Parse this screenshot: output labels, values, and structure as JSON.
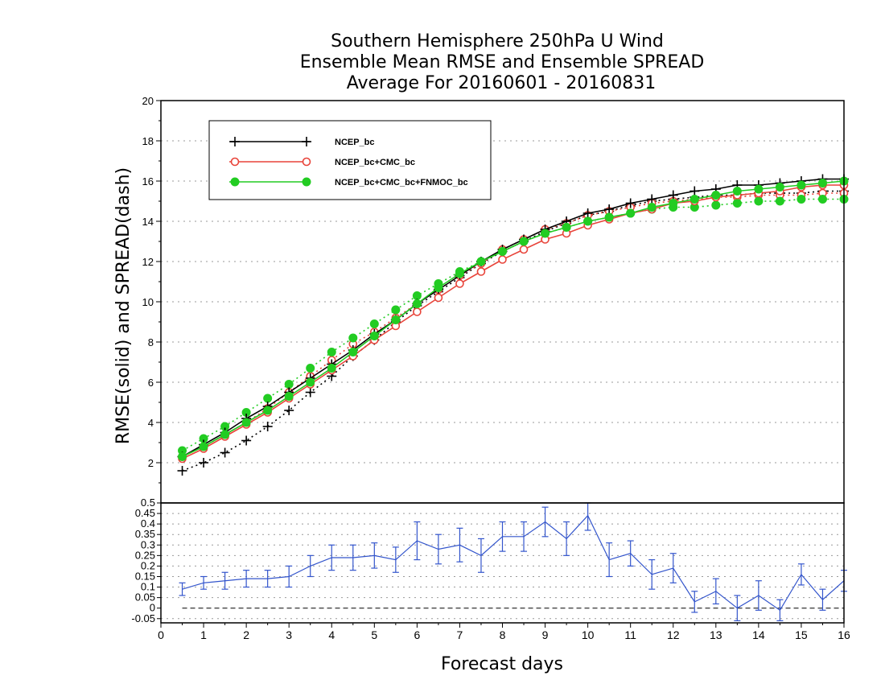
{
  "chart_data": [
    {
      "type": "line",
      "title_lines": [
        "Southern Hemisphere 250hPa U Wind",
        "Ensemble Mean RMSE and Ensemble SPREAD",
        "Average For 20160601 - 20160831"
      ],
      "ylabel": "RMSE(solid) and SPREAD(dash)",
      "xlabel": "Forecast days",
      "xlim": [
        0,
        16
      ],
      "ylim": [
        0,
        20
      ],
      "yticks": [
        2,
        4,
        6,
        8,
        10,
        12,
        14,
        16,
        18,
        20
      ],
      "xticks": [
        0,
        1,
        2,
        3,
        4,
        5,
        6,
        7,
        8,
        9,
        10,
        11,
        12,
        13,
        14,
        15,
        16
      ],
      "grid": true,
      "legend_position": "top-left",
      "x": [
        0.5,
        1,
        1.5,
        2,
        2.5,
        3,
        3.5,
        4,
        4.5,
        5,
        5.5,
        6,
        6.5,
        7,
        7.5,
        8,
        8.5,
        9,
        9.5,
        10,
        10.5,
        11,
        11.5,
        12,
        12.5,
        13,
        13.5,
        14,
        14.5,
        15,
        15.5,
        16
      ],
      "series": [
        {
          "name": "NCEP_bc",
          "color": "#000000",
          "marker": "plus",
          "rmse": [
            2.3,
            2.9,
            3.5,
            4.2,
            4.8,
            5.5,
            6.2,
            6.9,
            7.6,
            8.4,
            9.1,
            9.9,
            10.6,
            11.3,
            12.0,
            12.6,
            13.1,
            13.6,
            14.0,
            14.4,
            14.6,
            14.9,
            15.1,
            15.3,
            15.5,
            15.6,
            15.8,
            15.8,
            15.9,
            16.0,
            16.1,
            16.1
          ],
          "spread": [
            1.6,
            2.0,
            2.5,
            3.1,
            3.8,
            4.6,
            5.5,
            6.3,
            7.3,
            8.1,
            9.0,
            9.8,
            10.5,
            11.2,
            11.9,
            12.5,
            13.0,
            13.5,
            13.9,
            14.3,
            14.5,
            14.8,
            15.0,
            15.1,
            15.2,
            15.3,
            15.3,
            15.4,
            15.4,
            15.4,
            15.5,
            15.5
          ]
        },
        {
          "name": "NCEP_bc+CMC_bc",
          "color": "#e8443a",
          "marker": "open-circle",
          "rmse": [
            2.2,
            2.7,
            3.3,
            3.9,
            4.5,
            5.2,
            5.9,
            6.6,
            7.3,
            8.1,
            8.8,
            9.5,
            10.2,
            10.9,
            11.5,
            12.1,
            12.6,
            13.1,
            13.4,
            13.8,
            14.1,
            14.4,
            14.6,
            14.9,
            15.0,
            15.2,
            15.3,
            15.4,
            15.5,
            15.7,
            15.8,
            15.8
          ],
          "spread": [
            2.3,
            2.8,
            3.4,
            4.0,
            4.7,
            5.5,
            6.3,
            7.1,
            7.9,
            8.5,
            9.2,
            9.9,
            10.6,
            11.3,
            11.9,
            12.6,
            13.1,
            13.6,
            13.9,
            14.3,
            14.5,
            14.7,
            14.9,
            15.0,
            15.1,
            15.2,
            15.2,
            15.3,
            15.3,
            15.3,
            15.4,
            15.4
          ]
        },
        {
          "name": "NCEP_bc+CMC_bc+FNMOC_bc",
          "color": "#22cc22",
          "marker": "filled-circle",
          "rmse": [
            2.3,
            2.8,
            3.4,
            4.0,
            4.6,
            5.3,
            6.0,
            6.7,
            7.5,
            8.3,
            9.1,
            9.9,
            10.7,
            11.4,
            12.0,
            12.5,
            13.0,
            13.4,
            13.7,
            14.0,
            14.2,
            14.4,
            14.7,
            14.9,
            15.1,
            15.3,
            15.5,
            15.6,
            15.7,
            15.8,
            15.9,
            16.0
          ],
          "spread": [
            2.6,
            3.2,
            3.8,
            4.5,
            5.2,
            5.9,
            6.7,
            7.5,
            8.2,
            8.9,
            9.6,
            10.3,
            10.9,
            11.5,
            12.0,
            12.5,
            13.0,
            13.4,
            13.7,
            14.0,
            14.2,
            14.4,
            14.6,
            14.7,
            14.7,
            14.8,
            14.9,
            15.0,
            15.0,
            15.1,
            15.1,
            15.1
          ]
        }
      ]
    },
    {
      "type": "line",
      "ylim": [
        -0.07,
        0.5
      ],
      "yticks": [
        -0.05,
        0,
        0.05,
        0.1,
        0.15,
        0.2,
        0.25,
        0.3,
        0.35,
        0.4,
        0.45,
        0.5
      ],
      "ytick_labels": [
        "-0.05",
        "0",
        "0.05",
        "0.1",
        "0.15",
        "0.2",
        "0.25",
        "0.3",
        "0.35",
        "0.4",
        "0.45",
        "0.5"
      ],
      "grid": true,
      "zero_line": true,
      "series": [
        {
          "color": "#3355cc",
          "marker": "error-bar",
          "x": [
            0.5,
            1,
            1.5,
            2,
            2.5,
            3,
            3.5,
            4,
            4.5,
            5,
            5.5,
            6,
            6.5,
            7,
            7.5,
            8,
            8.5,
            9,
            9.5,
            10,
            10.5,
            11,
            11.5,
            12,
            12.5,
            13,
            13.5,
            14,
            14.5,
            15,
            15.5,
            16
          ],
          "values": [
            0.09,
            0.12,
            0.13,
            0.14,
            0.14,
            0.15,
            0.2,
            0.24,
            0.24,
            0.25,
            0.23,
            0.32,
            0.28,
            0.3,
            0.25,
            0.34,
            0.34,
            0.41,
            0.33,
            0.44,
            0.23,
            0.26,
            0.16,
            0.19,
            0.03,
            0.08,
            0.0,
            0.06,
            -0.01,
            0.16,
            0.04,
            0.13
          ],
          "error": [
            0.03,
            0.03,
            0.04,
            0.04,
            0.04,
            0.05,
            0.05,
            0.06,
            0.06,
            0.06,
            0.06,
            0.09,
            0.07,
            0.08,
            0.08,
            0.07,
            0.07,
            0.07,
            0.08,
            0.07,
            0.08,
            0.06,
            0.07,
            0.07,
            0.05,
            0.06,
            0.06,
            0.07,
            0.05,
            0.05,
            0.05,
            0.05
          ]
        }
      ]
    }
  ]
}
